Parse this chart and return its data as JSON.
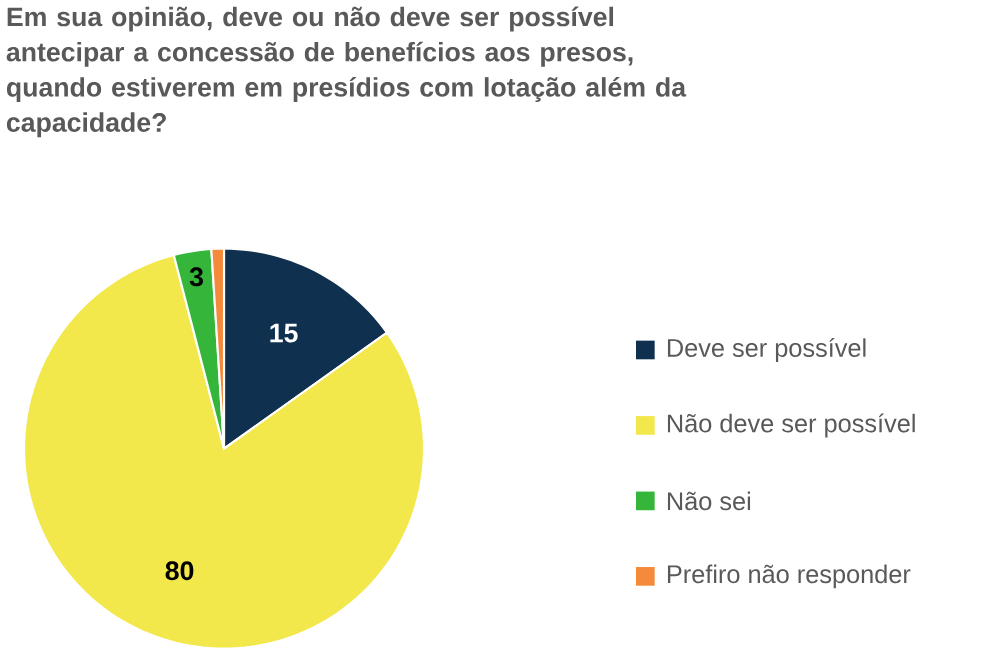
{
  "chart_data": {
    "type": "pie",
    "title": "Em sua opinião, deve ou não deve ser possível antecipar a concessão de benefícios aos presos, quando estiverem em presídios com lotação além da capacidade?",
    "categories": [
      "Deve ser possível",
      "Não deve ser possível",
      "Não sei",
      "Prefiro não responder"
    ],
    "values": [
      15,
      80,
      3,
      1
    ],
    "value_labels": [
      "15",
      "80",
      "3",
      null
    ],
    "colors": [
      "#10304f",
      "#f2e74b",
      "#35b63a",
      "#f58a3a"
    ],
    "legend": "right"
  }
}
